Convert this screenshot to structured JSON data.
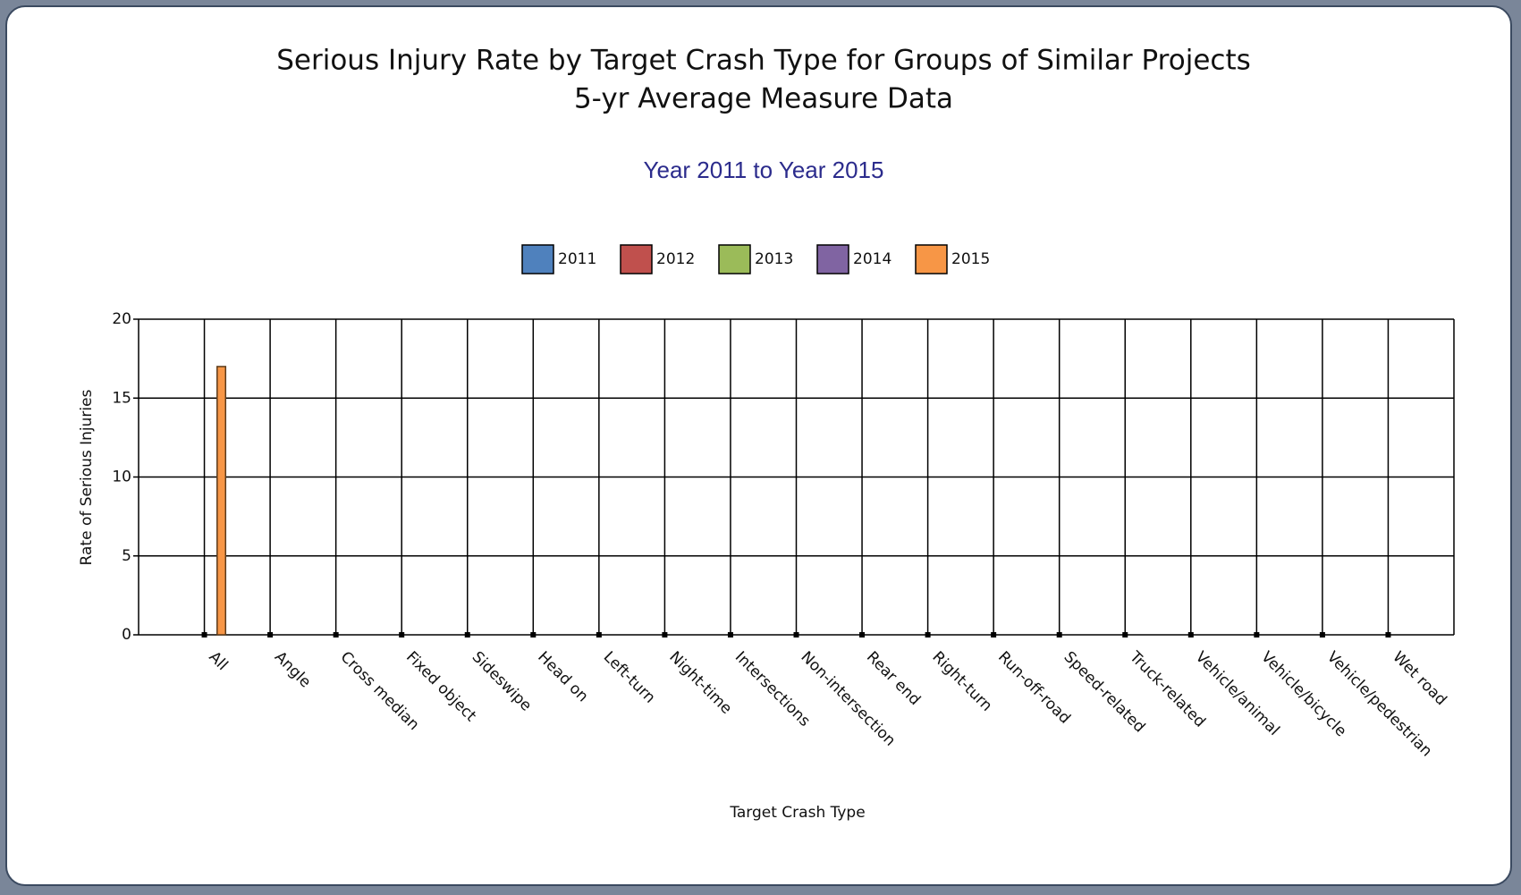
{
  "chart_data": {
    "type": "bar",
    "title": [
      "Serious Injury Rate by Target Crash Type for Groups of Similar Projects",
      "5-yr Average Measure Data"
    ],
    "subtitle": "Year 2011 to Year 2015",
    "x_label": "Target Crash Type",
    "y_label": "Rate of Serious Injuries",
    "categories": [
      "All",
      "Angle",
      "Cross median",
      "Fixed object",
      "Sideswipe",
      "Head on",
      "Left-turn",
      "Night-time",
      "Intersections",
      "Non-intersection",
      "Rear end",
      "Right-turn",
      "Run-off-road",
      "Speed-related",
      "Truck-related",
      "Vehicle/animal",
      "Vehicle/bicycle",
      "Vehicle/pedestrian",
      "Wet road"
    ],
    "series": [
      {
        "name": "2011",
        "color": "#4f81bd",
        "values": [
          0,
          0,
          0,
          0,
          0,
          0,
          0,
          0,
          0,
          0,
          0,
          0,
          0,
          0,
          0,
          0,
          0,
          0,
          0
        ]
      },
      {
        "name": "2012",
        "color": "#c0504d",
        "values": [
          0,
          0,
          0,
          0,
          0,
          0,
          0,
          0,
          0,
          0,
          0,
          0,
          0,
          0,
          0,
          0,
          0,
          0,
          0
        ]
      },
      {
        "name": "2013",
        "color": "#9bbb59",
        "values": [
          0,
          0,
          0,
          0,
          0,
          0,
          0,
          0,
          0,
          0,
          0,
          0,
          0,
          0,
          0,
          0,
          0,
          0,
          0
        ]
      },
      {
        "name": "2014",
        "color": "#8064a2",
        "values": [
          0,
          0,
          0,
          0,
          0,
          0,
          0,
          0,
          0,
          0,
          0,
          0,
          0,
          0,
          0,
          0,
          0,
          0,
          0
        ]
      },
      {
        "name": "2015",
        "color": "#f79646",
        "values": [
          17,
          0,
          0,
          0,
          0,
          0,
          0,
          0,
          0,
          0,
          0,
          0,
          0,
          0,
          0,
          0,
          0,
          0,
          0
        ]
      }
    ],
    "ylim": [
      0,
      20
    ],
    "yticks": [
      0,
      5,
      10,
      15,
      20
    ],
    "grid": true
  }
}
